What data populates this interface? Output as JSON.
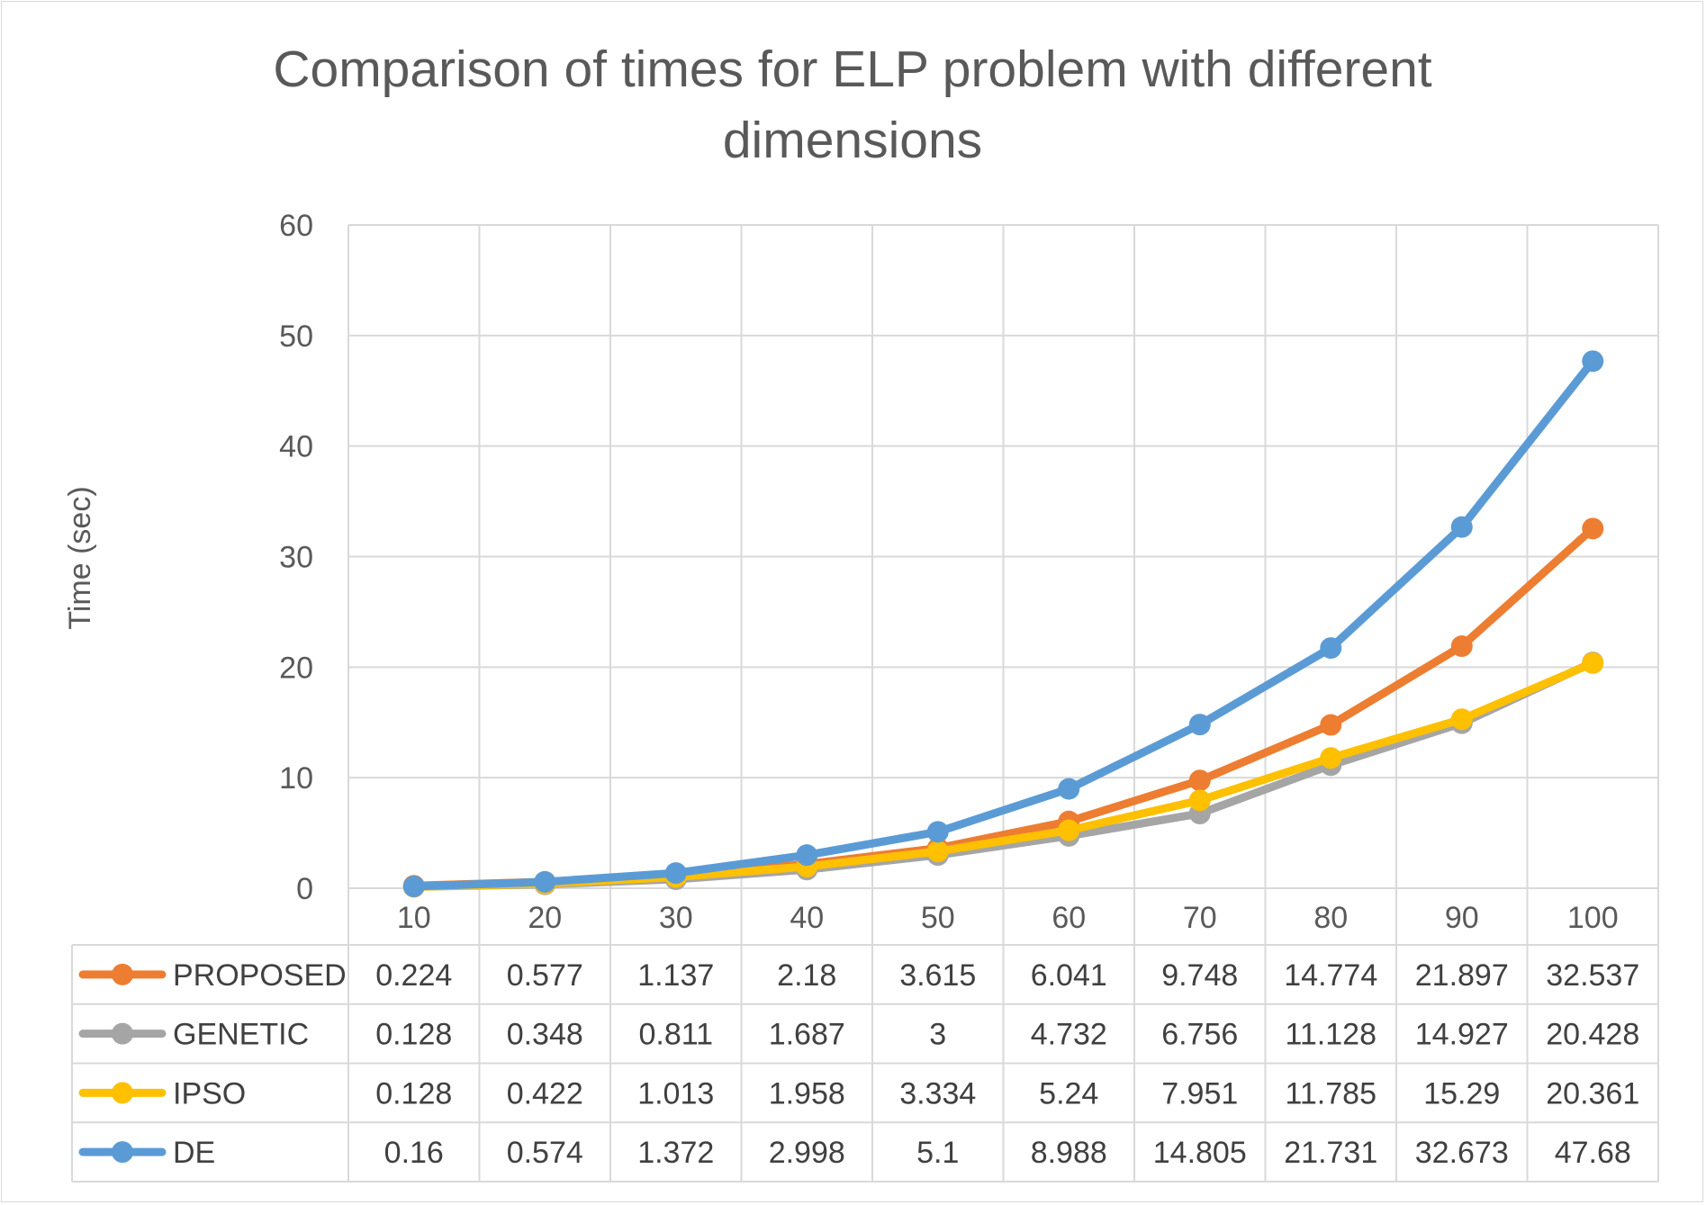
{
  "chart_data": {
    "type": "line",
    "title": "Comparison of times for ELP problem with different dimensions",
    "title_lines": [
      "Comparison of times for ELP problem with different",
      "dimensions"
    ],
    "xlabel": "",
    "ylabel": "Time (sec)",
    "ylim": [
      0,
      60
    ],
    "yticks": [
      0,
      10,
      20,
      30,
      40,
      50,
      60
    ],
    "grid": true,
    "legend_placement": "data-table",
    "categories": [
      "10",
      "20",
      "30",
      "40",
      "50",
      "60",
      "70",
      "80",
      "90",
      "100"
    ],
    "series": [
      {
        "name": "PROPOSED",
        "color": "#ED7D31",
        "values": [
          0.224,
          0.577,
          1.137,
          2.18,
          3.615,
          6.041,
          9.748,
          14.774,
          21.897,
          32.537
        ],
        "labels": [
          "0.224",
          "0.577",
          "1.137",
          "2.18",
          "3.615",
          "6.041",
          "9.748",
          "14.774",
          "21.897",
          "32.537"
        ]
      },
      {
        "name": "GENETIC",
        "color": "#A5A5A5",
        "values": [
          0.128,
          0.348,
          0.811,
          1.687,
          3,
          4.732,
          6.756,
          11.128,
          14.927,
          20.428
        ],
        "labels": [
          "0.128",
          "0.348",
          "0.811",
          "1.687",
          "3",
          "4.732",
          "6.756",
          "11.128",
          "14.927",
          "20.428"
        ]
      },
      {
        "name": "IPSO",
        "color": "#FFC000",
        "values": [
          0.128,
          0.422,
          1.013,
          1.958,
          3.334,
          5.24,
          7.951,
          11.785,
          15.29,
          20.361
        ],
        "labels": [
          "0.128",
          "0.422",
          "1.013",
          "1.958",
          "3.334",
          "5.24",
          "7.951",
          "11.785",
          "15.29",
          "20.361"
        ]
      },
      {
        "name": "DE",
        "color": "#5B9BD5",
        "values": [
          0.16,
          0.574,
          1.372,
          2.998,
          5.1,
          8.988,
          14.805,
          21.731,
          32.673,
          47.68
        ],
        "labels": [
          "0.16",
          "0.574",
          "1.372",
          "2.998",
          "5.1",
          "8.988",
          "14.805",
          "21.731",
          "32.673",
          "47.68"
        ]
      }
    ]
  }
}
